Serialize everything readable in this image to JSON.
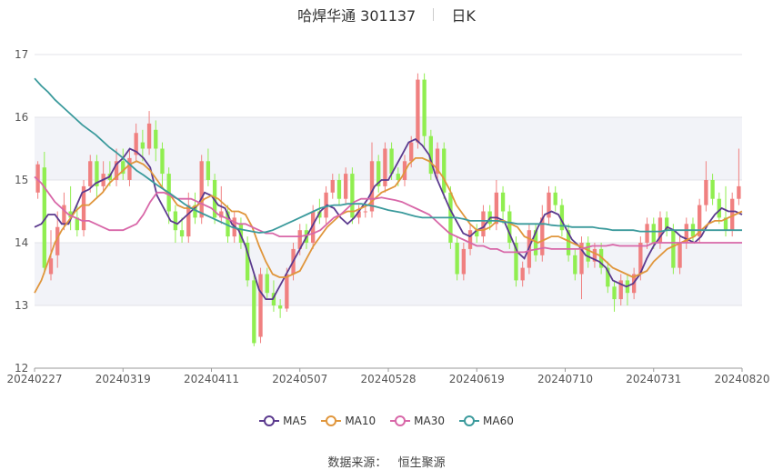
{
  "header": {
    "title": "哈焊华通 301137",
    "period": "日K"
  },
  "source": {
    "label": "数据来源：",
    "value": "恒生聚源"
  },
  "chart_data": {
    "type": "candlestick",
    "title": "哈焊华通 301137",
    "period": "日K",
    "ylim": [
      12,
      17
    ],
    "yticks": [
      12,
      13,
      14,
      15,
      16,
      17
    ],
    "x_ticks": [
      "20240227",
      "20240319",
      "20240411",
      "20240507",
      "20240528",
      "20240619",
      "20240710",
      "20240731",
      "20240820"
    ],
    "up_color": "#f08080",
    "down_color": "#90ee50",
    "grid": true,
    "legend_position": "bottom",
    "candles": [
      {
        "o": 14.8,
        "c": 15.25,
        "h": 15.3,
        "l": 14.7
      },
      {
        "o": 15.2,
        "c": 13.6,
        "h": 15.45,
        "l": 13.5
      },
      {
        "o": 13.5,
        "c": 13.75,
        "h": 14.2,
        "l": 13.4
      },
      {
        "o": 13.8,
        "c": 14.25,
        "h": 14.5,
        "l": 13.6
      },
      {
        "o": 14.3,
        "c": 14.6,
        "h": 14.8,
        "l": 14.2
      },
      {
        "o": 14.5,
        "c": 14.4,
        "h": 14.9,
        "l": 14.2
      },
      {
        "o": 14.4,
        "c": 14.2,
        "h": 14.6,
        "l": 14.1
      },
      {
        "o": 14.2,
        "c": 14.9,
        "h": 15.0,
        "l": 14.1
      },
      {
        "o": 14.9,
        "c": 15.3,
        "h": 15.4,
        "l": 14.8
      },
      {
        "o": 15.3,
        "c": 14.9,
        "h": 15.4,
        "l": 14.7
      },
      {
        "o": 14.9,
        "c": 15.1,
        "h": 15.3,
        "l": 14.8
      },
      {
        "o": 15.1,
        "c": 15.0,
        "h": 15.3,
        "l": 14.9
      },
      {
        "o": 15.0,
        "c": 15.3,
        "h": 15.5,
        "l": 14.9
      },
      {
        "o": 15.3,
        "c": 15.1,
        "h": 15.5,
        "l": 15.0
      },
      {
        "o": 15.0,
        "c": 15.35,
        "h": 15.5,
        "l": 14.9
      },
      {
        "o": 15.4,
        "c": 15.75,
        "h": 15.9,
        "l": 15.3
      },
      {
        "o": 15.6,
        "c": 15.5,
        "h": 15.8,
        "l": 15.3
      },
      {
        "o": 15.5,
        "c": 15.9,
        "h": 16.1,
        "l": 15.4
      },
      {
        "o": 15.8,
        "c": 15.5,
        "h": 15.95,
        "l": 15.3
      },
      {
        "o": 15.5,
        "c": 15.1,
        "h": 15.6,
        "l": 14.9
      },
      {
        "o": 15.1,
        "c": 14.5,
        "h": 15.2,
        "l": 14.3
      },
      {
        "o": 14.5,
        "c": 14.2,
        "h": 14.6,
        "l": 14.0
      },
      {
        "o": 14.2,
        "c": 14.1,
        "h": 14.4,
        "l": 14.0
      },
      {
        "o": 14.1,
        "c": 14.6,
        "h": 14.8,
        "l": 14.0
      },
      {
        "o": 14.6,
        "c": 14.4,
        "h": 14.8,
        "l": 14.3
      },
      {
        "o": 14.4,
        "c": 15.3,
        "h": 15.4,
        "l": 14.3
      },
      {
        "o": 15.3,
        "c": 15.0,
        "h": 15.5,
        "l": 14.9
      },
      {
        "o": 15.0,
        "c": 14.4,
        "h": 15.1,
        "l": 14.3
      },
      {
        "o": 14.4,
        "c": 14.5,
        "h": 14.9,
        "l": 14.3
      },
      {
        "o": 14.5,
        "c": 14.1,
        "h": 14.6,
        "l": 14.0
      },
      {
        "o": 14.1,
        "c": 14.4,
        "h": 14.5,
        "l": 14.0
      },
      {
        "o": 14.3,
        "c": 14.0,
        "h": 14.4,
        "l": 13.9
      },
      {
        "o": 14.0,
        "c": 13.4,
        "h": 14.1,
        "l": 13.3
      },
      {
        "o": 13.4,
        "c": 12.4,
        "h": 13.5,
        "l": 12.35
      },
      {
        "o": 12.5,
        "c": 13.5,
        "h": 13.6,
        "l": 12.4
      },
      {
        "o": 13.5,
        "c": 13.2,
        "h": 13.6,
        "l": 13.1
      },
      {
        "o": 13.2,
        "c": 13.0,
        "h": 13.4,
        "l": 12.9
      },
      {
        "o": 13.0,
        "c": 12.95,
        "h": 13.1,
        "l": 12.8
      },
      {
        "o": 12.95,
        "c": 13.5,
        "h": 13.6,
        "l": 12.9
      },
      {
        "o": 13.5,
        "c": 13.9,
        "h": 14.0,
        "l": 13.4
      },
      {
        "o": 13.9,
        "c": 14.2,
        "h": 14.3,
        "l": 13.8
      },
      {
        "o": 14.2,
        "c": 14.0,
        "h": 14.3,
        "l": 13.9
      },
      {
        "o": 14.0,
        "c": 14.5,
        "h": 14.6,
        "l": 13.9
      },
      {
        "o": 14.5,
        "c": 14.4,
        "h": 14.7,
        "l": 14.3
      },
      {
        "o": 14.4,
        "c": 14.8,
        "h": 14.9,
        "l": 14.3
      },
      {
        "o": 14.8,
        "c": 15.0,
        "h": 15.1,
        "l": 14.7
      },
      {
        "o": 15.0,
        "c": 14.7,
        "h": 15.1,
        "l": 14.6
      },
      {
        "o": 14.7,
        "c": 15.1,
        "h": 15.2,
        "l": 14.6
      },
      {
        "o": 15.1,
        "c": 14.4,
        "h": 15.2,
        "l": 14.3
      },
      {
        "o": 14.4,
        "c": 14.5,
        "h": 14.6,
        "l": 14.3
      },
      {
        "o": 14.5,
        "c": 14.5,
        "h": 14.6,
        "l": 14.4
      },
      {
        "o": 14.5,
        "c": 15.3,
        "h": 15.6,
        "l": 14.4
      },
      {
        "o": 15.3,
        "c": 14.9,
        "h": 15.4,
        "l": 14.8
      },
      {
        "o": 14.9,
        "c": 15.5,
        "h": 15.6,
        "l": 14.8
      },
      {
        "o": 15.5,
        "c": 15.1,
        "h": 15.6,
        "l": 15.0
      },
      {
        "o": 15.1,
        "c": 15.0,
        "h": 15.2,
        "l": 14.9
      },
      {
        "o": 15.0,
        "c": 15.3,
        "h": 15.4,
        "l": 14.9
      },
      {
        "o": 15.3,
        "c": 15.6,
        "h": 15.7,
        "l": 15.2
      },
      {
        "o": 15.6,
        "c": 16.6,
        "h": 16.7,
        "l": 15.5
      },
      {
        "o": 16.6,
        "c": 15.7,
        "h": 16.7,
        "l": 15.5
      },
      {
        "o": 15.7,
        "c": 15.1,
        "h": 15.8,
        "l": 15.0
      },
      {
        "o": 15.1,
        "c": 15.5,
        "h": 15.6,
        "l": 15.0
      },
      {
        "o": 15.5,
        "c": 14.8,
        "h": 15.6,
        "l": 14.7
      },
      {
        "o": 14.8,
        "c": 14.0,
        "h": 14.9,
        "l": 13.9
      },
      {
        "o": 14.0,
        "c": 13.5,
        "h": 14.1,
        "l": 13.4
      },
      {
        "o": 13.5,
        "c": 13.9,
        "h": 14.0,
        "l": 13.4
      },
      {
        "o": 13.9,
        "c": 14.2,
        "h": 14.3,
        "l": 13.8
      },
      {
        "o": 14.2,
        "c": 14.1,
        "h": 14.3,
        "l": 14.0
      },
      {
        "o": 14.1,
        "c": 14.5,
        "h": 14.6,
        "l": 14.0
      },
      {
        "o": 14.5,
        "c": 14.3,
        "h": 14.6,
        "l": 14.2
      },
      {
        "o": 14.3,
        "c": 14.8,
        "h": 15.0,
        "l": 14.2
      },
      {
        "o": 14.8,
        "c": 14.5,
        "h": 14.9,
        "l": 14.3
      },
      {
        "o": 14.5,
        "c": 14.0,
        "h": 14.6,
        "l": 13.9
      },
      {
        "o": 14.0,
        "c": 13.4,
        "h": 14.1,
        "l": 13.3
      },
      {
        "o": 13.4,
        "c": 13.6,
        "h": 13.7,
        "l": 13.3
      },
      {
        "o": 13.6,
        "c": 14.2,
        "h": 14.3,
        "l": 13.5
      },
      {
        "o": 14.2,
        "c": 13.8,
        "h": 14.3,
        "l": 13.7
      },
      {
        "o": 13.8,
        "c": 14.4,
        "h": 14.6,
        "l": 13.7
      },
      {
        "o": 14.4,
        "c": 14.8,
        "h": 14.9,
        "l": 14.3
      },
      {
        "o": 14.8,
        "c": 14.6,
        "h": 14.9,
        "l": 14.5
      },
      {
        "o": 14.6,
        "c": 14.2,
        "h": 14.7,
        "l": 14.1
      },
      {
        "o": 14.2,
        "c": 13.8,
        "h": 14.3,
        "l": 13.7
      },
      {
        "o": 13.8,
        "c": 13.5,
        "h": 13.9,
        "l": 13.4
      },
      {
        "o": 13.5,
        "c": 14.0,
        "h": 14.1,
        "l": 13.1
      },
      {
        "o": 14.0,
        "c": 13.7,
        "h": 14.1,
        "l": 13.6
      },
      {
        "o": 13.7,
        "c": 13.9,
        "h": 14.0,
        "l": 13.6
      },
      {
        "o": 13.9,
        "c": 13.6,
        "h": 14.0,
        "l": 13.5
      },
      {
        "o": 13.6,
        "c": 13.3,
        "h": 13.7,
        "l": 13.2
      },
      {
        "o": 13.3,
        "c": 13.1,
        "h": 13.4,
        "l": 12.9
      },
      {
        "o": 13.1,
        "c": 13.4,
        "h": 13.5,
        "l": 13.0
      },
      {
        "o": 13.4,
        "c": 13.2,
        "h": 13.5,
        "l": 13.0
      },
      {
        "o": 13.2,
        "c": 13.5,
        "h": 13.6,
        "l": 13.1
      },
      {
        "o": 13.5,
        "c": 14.0,
        "h": 14.1,
        "l": 13.4
      },
      {
        "o": 14.0,
        "c": 14.3,
        "h": 14.4,
        "l": 13.9
      },
      {
        "o": 14.3,
        "c": 14.0,
        "h": 14.4,
        "l": 13.9
      },
      {
        "o": 14.0,
        "c": 14.4,
        "h": 14.5,
        "l": 13.9
      },
      {
        "o": 14.4,
        "c": 14.2,
        "h": 14.5,
        "l": 14.1
      },
      {
        "o": 14.2,
        "c": 13.6,
        "h": 14.3,
        "l": 13.5
      },
      {
        "o": 13.6,
        "c": 14.0,
        "h": 14.1,
        "l": 13.5
      },
      {
        "o": 14.0,
        "c": 14.3,
        "h": 14.4,
        "l": 13.9
      },
      {
        "o": 14.3,
        "c": 14.1,
        "h": 14.4,
        "l": 14.0
      },
      {
        "o": 14.1,
        "c": 14.6,
        "h": 14.7,
        "l": 14.0
      },
      {
        "o": 14.6,
        "c": 15.0,
        "h": 15.3,
        "l": 14.5
      },
      {
        "o": 15.0,
        "c": 14.7,
        "h": 15.1,
        "l": 14.6
      },
      {
        "o": 14.7,
        "c": 14.4,
        "h": 14.8,
        "l": 14.3
      },
      {
        "o": 14.4,
        "c": 14.2,
        "h": 14.9,
        "l": 14.1
      },
      {
        "o": 14.2,
        "c": 14.7,
        "h": 14.8,
        "l": 14.1
      },
      {
        "o": 14.7,
        "c": 14.9,
        "h": 15.5,
        "l": 14.6
      }
    ],
    "series": [
      {
        "name": "MA5",
        "color": "#5b3a8e",
        "values": [
          14.25,
          14.3,
          14.45,
          14.45,
          14.3,
          14.3,
          14.55,
          14.8,
          14.85,
          14.95,
          15.0,
          15.05,
          15.25,
          15.35,
          15.5,
          15.45,
          15.35,
          15.2,
          14.75,
          14.55,
          14.35,
          14.3,
          14.4,
          14.5,
          14.6,
          14.8,
          14.75,
          14.6,
          14.55,
          14.3,
          14.2,
          13.95,
          13.6,
          13.25,
          13.1,
          13.1,
          13.3,
          13.5,
          13.7,
          13.9,
          14.1,
          14.3,
          14.5,
          14.6,
          14.55,
          14.4,
          14.3,
          14.4,
          14.55,
          14.7,
          14.9,
          15.0,
          15.0,
          15.2,
          15.4,
          15.6,
          15.65,
          15.55,
          15.4,
          15.05,
          14.8,
          14.55,
          14.35,
          14.15,
          14.1,
          14.2,
          14.25,
          14.4,
          14.4,
          14.35,
          14.1,
          13.85,
          13.75,
          14.0,
          14.25,
          14.45,
          14.5,
          14.45,
          14.25,
          14.05,
          13.95,
          13.8,
          13.75,
          13.7,
          13.6,
          13.4,
          13.35,
          13.3,
          13.35,
          13.5,
          13.75,
          13.95,
          14.1,
          14.25,
          14.2,
          14.1,
          14.05,
          14.0,
          14.1,
          14.3,
          14.45,
          14.55,
          14.5,
          14.5,
          14.45
        ]
      },
      {
        "name": "MA10",
        "color": "#e0963c",
        "values": [
          13.2,
          13.4,
          13.7,
          14.0,
          14.2,
          14.35,
          14.5,
          14.6,
          14.6,
          14.7,
          14.8,
          14.95,
          15.05,
          15.15,
          15.25,
          15.3,
          15.25,
          15.15,
          15.0,
          14.85,
          14.75,
          14.6,
          14.55,
          14.55,
          14.6,
          14.7,
          14.75,
          14.7,
          14.6,
          14.5,
          14.5,
          14.45,
          14.25,
          13.95,
          13.7,
          13.5,
          13.45,
          13.45,
          13.5,
          13.55,
          13.75,
          13.95,
          14.1,
          14.25,
          14.35,
          14.45,
          14.5,
          14.5,
          14.55,
          14.6,
          14.7,
          14.8,
          14.85,
          14.9,
          15.05,
          15.25,
          15.35,
          15.35,
          15.3,
          15.2,
          15.05,
          14.85,
          14.6,
          14.45,
          14.3,
          14.2,
          14.2,
          14.25,
          14.35,
          14.35,
          14.3,
          14.25,
          14.1,
          14.05,
          14.0,
          14.05,
          14.1,
          14.1,
          14.05,
          14.0,
          13.95,
          13.9,
          13.85,
          13.8,
          13.7,
          13.6,
          13.55,
          13.5,
          13.45,
          13.5,
          13.55,
          13.7,
          13.8,
          13.9,
          13.95,
          14.0,
          14.05,
          14.1,
          14.2,
          14.3,
          14.35,
          14.35,
          14.4,
          14.45,
          14.5
        ]
      },
      {
        "name": "MA30",
        "color": "#d867a8",
        "values": [
          15.05,
          14.95,
          14.8,
          14.65,
          14.55,
          14.45,
          14.4,
          14.35,
          14.35,
          14.3,
          14.25,
          14.2,
          14.2,
          14.2,
          14.25,
          14.3,
          14.45,
          14.65,
          14.8,
          14.8,
          14.75,
          14.7,
          14.7,
          14.7,
          14.65,
          14.6,
          14.55,
          14.45,
          14.4,
          14.35,
          14.3,
          14.3,
          14.25,
          14.2,
          14.15,
          14.15,
          14.1,
          14.1,
          14.1,
          14.1,
          14.12,
          14.15,
          14.2,
          14.3,
          14.4,
          14.45,
          14.55,
          14.65,
          14.7,
          14.7,
          14.7,
          14.72,
          14.7,
          14.68,
          14.65,
          14.6,
          14.55,
          14.5,
          14.45,
          14.35,
          14.25,
          14.15,
          14.1,
          14.05,
          14.0,
          13.95,
          13.95,
          13.9,
          13.9,
          13.85,
          13.85,
          13.85,
          13.85,
          13.88,
          13.9,
          13.92,
          13.9,
          13.9,
          13.9,
          13.9,
          13.9,
          13.92,
          13.95,
          13.95,
          13.95,
          13.97,
          13.95,
          13.95,
          13.95,
          13.95,
          13.95,
          14.0,
          14.0,
          14.0,
          14.0,
          14.0,
          14.0,
          14.0,
          14.0,
          14.0,
          14.0,
          14.0,
          14.0,
          14.0,
          14.0
        ]
      },
      {
        "name": "MA60",
        "color": "#3b9a9c",
        "values": [
          16.62,
          16.5,
          16.4,
          16.28,
          16.18,
          16.08,
          15.98,
          15.88,
          15.8,
          15.72,
          15.62,
          15.52,
          15.44,
          15.35,
          15.25,
          15.15,
          15.08,
          15.0,
          14.92,
          14.85,
          14.78,
          14.7,
          14.62,
          14.55,
          14.5,
          14.45,
          14.4,
          14.35,
          14.3,
          14.25,
          14.22,
          14.2,
          14.18,
          14.16,
          14.17,
          14.2,
          14.25,
          14.3,
          14.35,
          14.4,
          14.45,
          14.5,
          14.55,
          14.58,
          14.6,
          14.6,
          14.62,
          14.62,
          14.62,
          14.6,
          14.58,
          14.55,
          14.52,
          14.5,
          14.48,
          14.45,
          14.42,
          14.4,
          14.4,
          14.4,
          14.4,
          14.4,
          14.4,
          14.38,
          14.35,
          14.35,
          14.35,
          14.35,
          14.35,
          14.33,
          14.32,
          14.3,
          14.3,
          14.3,
          14.3,
          14.3,
          14.28,
          14.27,
          14.27,
          14.25,
          14.25,
          14.25,
          14.25,
          14.23,
          14.22,
          14.2,
          14.2,
          14.2,
          14.2,
          14.18,
          14.18,
          14.18,
          14.18,
          14.2,
          14.2,
          14.2,
          14.2,
          14.2,
          14.2,
          14.2,
          14.2,
          14.2,
          14.2,
          14.2,
          14.2
        ]
      }
    ]
  }
}
